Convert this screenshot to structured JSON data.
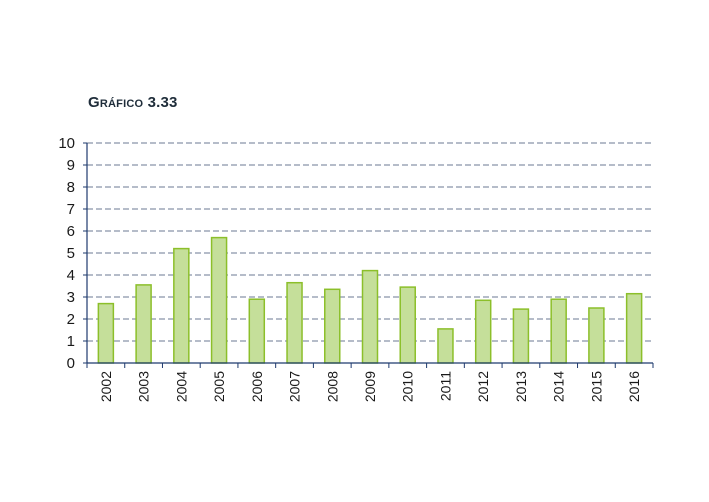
{
  "figure_label": "Gráfico 3.33",
  "chart_data": {
    "type": "bar",
    "categories": [
      "2002",
      "2003",
      "2004",
      "2005",
      "2006",
      "2007",
      "2008",
      "2009",
      "2010",
      "2011",
      "2012",
      "2013",
      "2014",
      "2015",
      "2016"
    ],
    "values": [
      2.7,
      3.55,
      5.2,
      5.7,
      2.9,
      3.65,
      3.35,
      4.2,
      3.45,
      1.55,
      2.85,
      2.45,
      2.9,
      2.5,
      3.15
    ],
    "yticks": [
      "0",
      "1",
      "2",
      "3",
      "4",
      "5",
      "6",
      "7",
      "8",
      "9",
      "10"
    ],
    "ylim": [
      0,
      10
    ],
    "grid": true,
    "colors": {
      "bar_fill": "#c5df9a",
      "bar_stroke": "#8cbf2a",
      "grid": "#6b7a93",
      "axis": "#1e3a6e"
    }
  }
}
